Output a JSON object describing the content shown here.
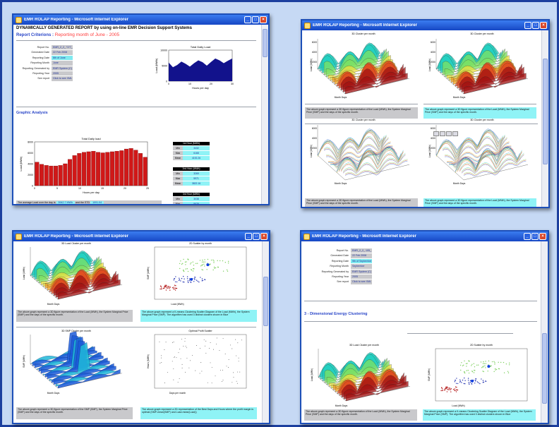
{
  "windows": [
    {
      "title": "EMR ROLAP Reporting - Microsoft Internet Explorer"
    },
    {
      "title": "EMR ROLAP Reporting - Microsoft Internet Explorer"
    },
    {
      "title": "EMR ROLAP Reporting - Microsoft Internet Explorer"
    },
    {
      "title": "EMR ROLAP Reporting - Microsoft Internet Explorer"
    }
  ],
  "report1": {
    "heading": "DYNAMICALLY GENERATED REPORT by using on-line EMR Decision Support Systems",
    "criteria_label": "Report Criterions :",
    "criteria_month": "Reporting month of June - 2005",
    "params": [
      {
        "label": "Report No.",
        "value": "EMR_2_2_ *1*7_"
      },
      {
        "label": "Generated Date",
        "value": "22 Feb 2008"
      },
      {
        "label": "Reporting Date",
        "value": "6th of June",
        "hl": true
      },
      {
        "label": "Reporting Month",
        "value": "June"
      },
      {
        "label": "Reporting Generated by",
        "value": "EMR System (C)"
      },
      {
        "label": "Reporting Year",
        "value": "2005"
      },
      {
        "label": "See report",
        "value": "Click to see XML report"
      }
    ],
    "mini_chart": {
      "title": "Total Daily Load",
      "ylabel": "Load (MWh)",
      "xlabel": "Hours per day",
      "yticks": [
        "10000",
        "5000",
        "0"
      ],
      "xticks": [
        "0",
        "10",
        "20",
        "30"
      ]
    },
    "graphic_analysis": "Graphic Analysis",
    "bar_chart": {
      "title": "Total Daily load",
      "ylabel": "Load (MWh)",
      "xlabel": "Hours per day",
      "yticks": [
        "8000",
        "6000",
        "4000",
        "2000",
        "0"
      ],
      "xticks": [
        "0",
        "5",
        "10",
        "15",
        "20",
        "25"
      ]
    },
    "avg_text": "The average Load over the day is",
    "avg_value": "5942.7 MWh",
    "avg_mid": "and the STD",
    "std_value": "1091.04",
    "stats": [
      {
        "header": "1st Hour (MWh)",
        "rows": [
          {
            "l": "Min",
            "v": "3432"
          },
          {
            "l": "Max",
            "v": "6168"
          },
          {
            "l": "Mean",
            "v": "4192.26"
          }
        ]
      },
      {
        "header": "2nd Hour (MWh)",
        "rows": [
          {
            "l": "Min",
            "v": "3269"
          },
          {
            "l": "Max",
            "v": "5971"
          },
          {
            "l": "Mean",
            "v": "3822.16"
          }
        ]
      },
      {
        "header": "3rd Hour (MWh)",
        "rows": [
          {
            "l": "Min",
            "v": "3038"
          },
          {
            "l": "Max",
            "v": "5629"
          },
          {
            "l": "Mean",
            "v": "3649.10"
          }
        ]
      }
    ]
  },
  "report2": {
    "charts": [
      {
        "title": "3D Cluster per month",
        "xlabel": "Month Days",
        "ylabel": "Load (MWh)",
        "yticks": [
          "6000",
          "4000",
          "2000"
        ]
      },
      {
        "title": "3D Cluster per month",
        "xlabel": "Month Days",
        "ylabel": "Load (MWh)",
        "yticks": [
          "6000",
          "4000",
          "2000"
        ]
      },
      {
        "title": "3D Cluster per month",
        "xlabel": "Month Days",
        "ylabel": "Load (MWh)",
        "yticks": [
          "6000",
          "4000",
          "2000"
        ]
      },
      {
        "title": "3D Cluster per month",
        "xlabel": "Month Days",
        "ylabel": "Load (MWh)",
        "yticks": [
          "6000",
          "4000",
          "2000"
        ]
      }
    ],
    "caption": "The above graph represent a 3D figure representation of the Load (MWh), the System Marginal Price (SMP) and the days of the specific month."
  },
  "report3": {
    "charts": [
      {
        "title": "3D Load Cluster per month",
        "xlabel": "Month Days",
        "ylabel": "Load (MWh)"
      },
      {
        "title": "2D Scatter by month",
        "xlabel": "Load (MWh)",
        "ylabel": "SMP (MWh)"
      },
      {
        "title": "3D SMP Cluster per month",
        "xlabel": "Month Days",
        "ylabel": "SMP (MWh)"
      },
      {
        "title": "Optimal Profit Scatter",
        "xlabel": "Days per month",
        "ylabel": "Hours (MWh)"
      }
    ],
    "captions": [
      "The above graph represent a 3D figure representation of the Load (MWh), the System Marginal Price (SMP) and the days of the specific month.",
      "The above graph represent a K-means Clustering Scatter Diagram of the Load (MWh), the System Marginal Price (SMP). The algorithm has used 3 distinct clusters shown in Blue",
      "The above graph represent a 3D figure representation of the SMP (SMP), the System Marginal Price (SMP) and the days of the specific month.",
      "The above graph represent a 2D representation of the Best Days and Hours where the profit margin is optimal (SMP-mean(SMP) and Load-mean(Load))"
    ]
  },
  "report4": {
    "params": [
      {
        "label": "Report No.",
        "value": "EMR_2_2_ 105_"
      },
      {
        "label": "Generated Date",
        "value": "22 Feb 2008"
      },
      {
        "label": "Reporting Date",
        "value": "9th of September",
        "hl": true
      },
      {
        "label": "Reporting Month",
        "value": "September"
      },
      {
        "label": "Reporting Generated by",
        "value": "EMR System (C)"
      },
      {
        "label": "Reporting Year",
        "value": "2005"
      },
      {
        "label": "See report",
        "value": "Click to see XML report"
      }
    ],
    "section": "3 - Dimensional Energy Clustering",
    "charts": [
      {
        "title": "3D Load Cluster per month",
        "xlabel": "Month Days",
        "ylabel": "Load (MWh)"
      },
      {
        "title": "2D Scatter by month",
        "xlabel": "Load (MWh)",
        "ylabel": "SMP (MWh)"
      }
    ],
    "captions": [
      "The above graph represent a 3D figure representation of the Load (MWh), the System Marginal Price (SMP) and the days of the specific month.",
      "The above graph represent a K-means Clustering Scatter Diagram of the Load (MWh), the System Marginal Price (SMP). The algorithm has used 3 distinct clusters shown in Blue"
    ]
  },
  "colors": {
    "accent": "#2a46c8",
    "highlight": "#8ff3f6",
    "bar": "#d01818",
    "title_bar": "#1647c4"
  },
  "chart_data": [
    {
      "type": "bar",
      "title": "Total Daily load",
      "xlabel": "Hours per day",
      "ylabel": "Load (MWh)",
      "ylim": [
        0,
        8000
      ],
      "categories": [
        "1",
        "2",
        "3",
        "4",
        "5",
        "6",
        "7",
        "8",
        "9",
        "10",
        "11",
        "12",
        "13",
        "14",
        "15",
        "16",
        "17",
        "18",
        "19",
        "20",
        "21",
        "22",
        "23",
        "24"
      ],
      "values": [
        4300,
        3900,
        3700,
        3600,
        3600,
        3700,
        4000,
        4800,
        5500,
        5900,
        6100,
        6200,
        6300,
        6100,
        6000,
        6100,
        6200,
        6300,
        6400,
        6700,
        6800,
        6500,
        5900,
        5200
      ]
    },
    {
      "type": "area",
      "title": "Total Daily Load",
      "xlabel": "Hours per day",
      "ylabel": "Load (MWh)",
      "ylim": [
        0,
        10000
      ],
      "x": [
        0,
        2,
        4,
        6,
        8,
        10,
        12,
        14,
        16,
        18,
        20,
        22,
        24,
        26,
        28,
        30
      ],
      "values": [
        6000,
        4500,
        5200,
        6300,
        5600,
        4700,
        5800,
        6700,
        6100,
        5000,
        6200,
        7300,
        6700,
        5800,
        6600,
        7300
      ]
    }
  ]
}
